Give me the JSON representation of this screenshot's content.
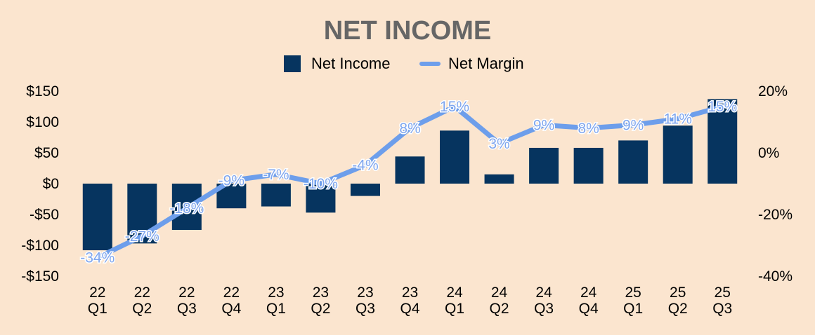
{
  "chart_data": {
    "type": "bar",
    "title": "NET INCOME",
    "categories": [
      [
        "22",
        "Q1"
      ],
      [
        "22",
        "Q2"
      ],
      [
        "22",
        "Q3"
      ],
      [
        "22",
        "Q4"
      ],
      [
        "23",
        "Q1"
      ],
      [
        "23",
        "Q2"
      ],
      [
        "23",
        "Q3"
      ],
      [
        "23",
        "Q4"
      ],
      [
        "24",
        "Q1"
      ],
      [
        "24",
        "Q2"
      ],
      [
        "24",
        "Q3"
      ],
      [
        "24",
        "Q4"
      ],
      [
        "25",
        "Q1"
      ],
      [
        "25",
        "Q2"
      ],
      [
        "25",
        "Q3"
      ]
    ],
    "series": [
      {
        "name": "Net Income",
        "type": "bar",
        "axis": "left",
        "color": "#06345f",
        "values": [
          -108,
          -97,
          -75,
          -40,
          -37,
          -47,
          -20,
          44,
          86,
          15,
          58,
          58,
          70,
          94,
          137
        ]
      },
      {
        "name": "Net Margin",
        "type": "line",
        "axis": "right",
        "color": "#6d9eeb",
        "values": [
          -34,
          -27,
          -18,
          -9,
          -7,
          -10,
          -4,
          8,
          15,
          3,
          9,
          8,
          9,
          11,
          15
        ],
        "labels": [
          "-34%",
          "-27%",
          "-18%",
          "-9%",
          "-7%",
          "-10%",
          "-4%",
          "8%",
          "15%",
          "3%",
          "9%",
          "8%",
          "9%",
          "11%",
          "15%"
        ]
      }
    ],
    "y_left": {
      "min": -150,
      "max": 150,
      "ticks": [
        150,
        100,
        50,
        0,
        -50,
        -100,
        -150
      ],
      "tick_labels": [
        "$150",
        "$100",
        "$50",
        "$0",
        "-$50",
        "-$100",
        "-$150"
      ]
    },
    "y_right": {
      "min": -40,
      "max": 20,
      "ticks": [
        20,
        0,
        -20,
        -40
      ],
      "tick_labels": [
        "20%",
        "0%",
        "-20%",
        "-40%"
      ]
    },
    "legend": {
      "placement": "top-center",
      "items": [
        "Net Income",
        "Net Margin"
      ]
    },
    "grid": false
  }
}
